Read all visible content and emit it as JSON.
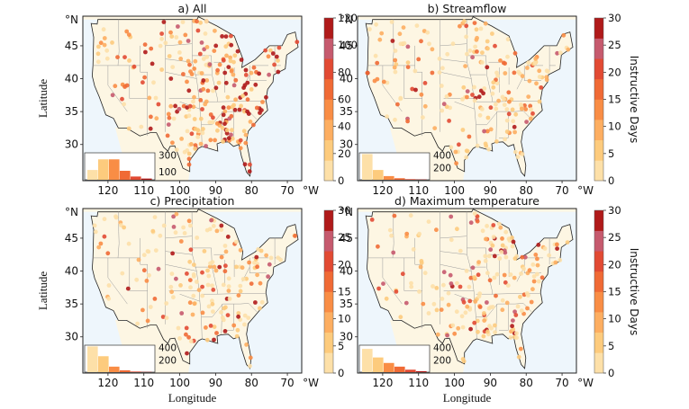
{
  "figure": {
    "xlabel": "Longitude",
    "ylabel": "Latitude",
    "lat_unit": "°N",
    "lon_unit": "°W",
    "lat_ticks": [
      30,
      35,
      40,
      45
    ],
    "lon_ticks": [
      120,
      110,
      100,
      90,
      80,
      70
    ],
    "colorbar_label": "Instructive Days"
  },
  "colors": {
    "land": "#fdf6e3",
    "ocean": "#eef6fc",
    "border": "#9a9a9a",
    "coast": "#222222",
    "scale": [
      "#fde0a8",
      "#fdcb7d",
      "#fdae61",
      "#f98d45",
      "#f06a35",
      "#e24a33",
      "#c65a6e",
      "#b01a1a"
    ]
  },
  "chart_data": [
    {
      "type": "scatter-map",
      "title": "a) All",
      "colorbar": {
        "max": 120,
        "ticks": [
          0,
          20,
          40,
          60,
          80,
          100,
          120
        ]
      },
      "inset_histogram": {
        "yticks": [
          100,
          300
        ],
        "ymax": 330,
        "values": [
          120,
          250,
          250,
          110,
          40,
          15
        ]
      },
      "density": 1.0
    },
    {
      "type": "scatter-map",
      "title": "b) Streamflow",
      "colorbar": {
        "max": 30,
        "ticks": [
          0,
          5,
          10,
          15,
          20,
          25,
          30
        ]
      },
      "inset_histogram": {
        "yticks": [
          200,
          400
        ],
        "ymax": 440,
        "values": [
          420,
          160,
          60,
          25,
          10,
          5
        ]
      },
      "density": 0.8
    },
    {
      "type": "scatter-map",
      "title": "c) Precipitation",
      "colorbar": {
        "max": 30,
        "ticks": [
          0,
          5,
          10,
          15,
          20,
          25,
          30
        ]
      },
      "inset_histogram": {
        "yticks": [
          200,
          400
        ],
        "ymax": 440,
        "values": [
          420,
          260,
          90,
          30,
          10,
          4
        ]
      },
      "density": 0.7
    },
    {
      "type": "scatter-map",
      "title": "d) Maximum temperature",
      "colorbar": {
        "max": 30,
        "ticks": [
          0,
          5,
          10,
          15,
          20,
          25,
          30
        ]
      },
      "inset_histogram": {
        "yticks": [
          200,
          400
        ],
        "ymax": 440,
        "values": [
          380,
          240,
          150,
          90,
          40,
          15
        ]
      },
      "density": 0.8
    }
  ]
}
